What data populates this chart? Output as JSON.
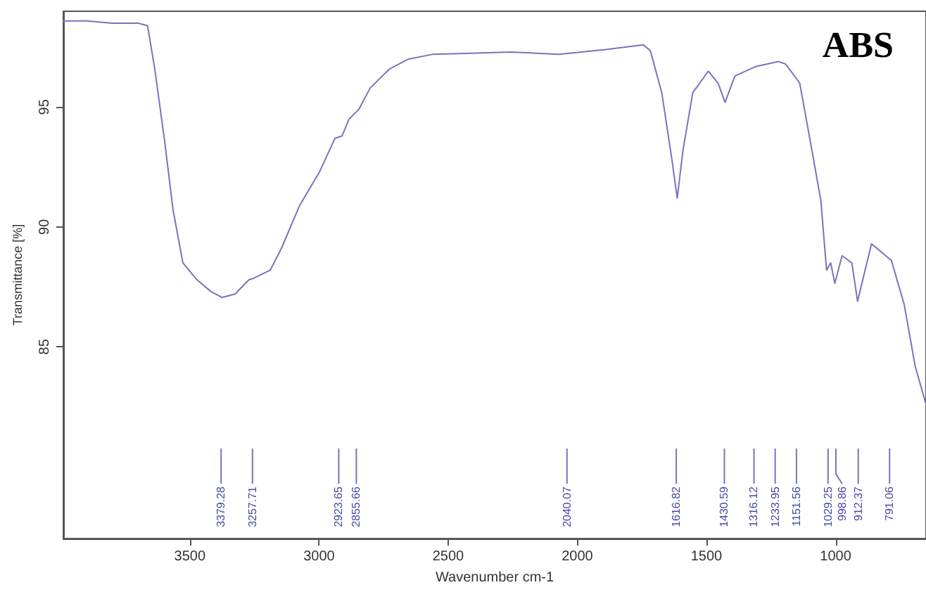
{
  "chart_data": {
    "type": "line",
    "title": "ABS",
    "xlabel": "Wavenumber cm-1",
    "ylabel": "Transmittance [%]",
    "xlim": [
      3990,
      650
    ],
    "ylim": [
      77,
      99
    ],
    "xticks": [
      3500,
      3000,
      2500,
      2000,
      1500,
      1000
    ],
    "yticks": [
      85,
      90,
      95
    ],
    "grid": false,
    "marker": "none",
    "line_style": "solid",
    "series": [
      {
        "color": "#7b72c0",
        "x": [
          3990,
          3900,
          3800,
          3700,
          3664,
          3636,
          3598,
          3565,
          3527,
          3473,
          3418,
          3375,
          3325,
          3271,
          3255,
          3189,
          3146,
          3075,
          2998,
          2938,
          2911,
          2884,
          2846,
          2802,
          2726,
          2655,
          2562,
          2437,
          2257,
          2071,
          1891,
          1744,
          1717,
          1673,
          1635,
          1613,
          1591,
          1553,
          1493,
          1455,
          1428,
          1390,
          1308,
          1221,
          1194,
          1166,
          1139,
          1090,
          1057,
          1035,
          1019,
          1003,
          975,
          937,
          915,
          861,
          784,
          735,
          692,
          650
        ],
        "values": [
          98.6,
          98.6,
          98.5,
          98.5,
          98.4,
          96.6,
          93.6,
          90.7,
          88.5,
          87.8,
          87.3,
          87.06,
          87.2,
          87.8,
          87.85,
          88.2,
          89.1,
          90.9,
          92.3,
          93.7,
          93.8,
          94.5,
          94.9,
          95.8,
          96.6,
          97.0,
          97.2,
          97.24,
          97.3,
          97.2,
          97.4,
          97.6,
          97.35,
          95.6,
          92.9,
          91.2,
          93.2,
          95.6,
          96.5,
          96.0,
          95.2,
          96.3,
          96.7,
          96.9,
          96.8,
          96.4,
          96.0,
          93.1,
          91.1,
          88.2,
          88.5,
          87.65,
          88.8,
          88.5,
          86.9,
          89.3,
          88.6,
          86.8,
          84.2,
          82.6
        ]
      }
    ],
    "ref_lines": [
      {
        "axis": "x",
        "value": 3379.28,
        "label": "3379.28"
      },
      {
        "axis": "x",
        "value": 3257.71,
        "label": "3257.71"
      },
      {
        "axis": "x",
        "value": 2923.65,
        "label": "2923.65"
      },
      {
        "axis": "x",
        "value": 2855.66,
        "label": "2855.66"
      },
      {
        "axis": "x",
        "value": 2040.07,
        "label": "2040.07"
      },
      {
        "axis": "x",
        "value": 1616.82,
        "label": "1616.82"
      },
      {
        "axis": "x",
        "value": 1430.59,
        "label": "1430.59"
      },
      {
        "axis": "x",
        "value": 1316.12,
        "label": "1316.12"
      },
      {
        "axis": "x",
        "value": 1233.95,
        "label": "1233.95"
      },
      {
        "axis": "x",
        "value": 1151.56,
        "label": "1151.56"
      },
      {
        "axis": "x",
        "value": 1029.25,
        "label": "1029.25"
      },
      {
        "axis": "x",
        "value": 998.86,
        "label": "998.86"
      },
      {
        "axis": "x",
        "value": 912.37,
        "label": "912.37"
      },
      {
        "axis": "x",
        "value": 791.06,
        "label": "791.06"
      }
    ]
  }
}
